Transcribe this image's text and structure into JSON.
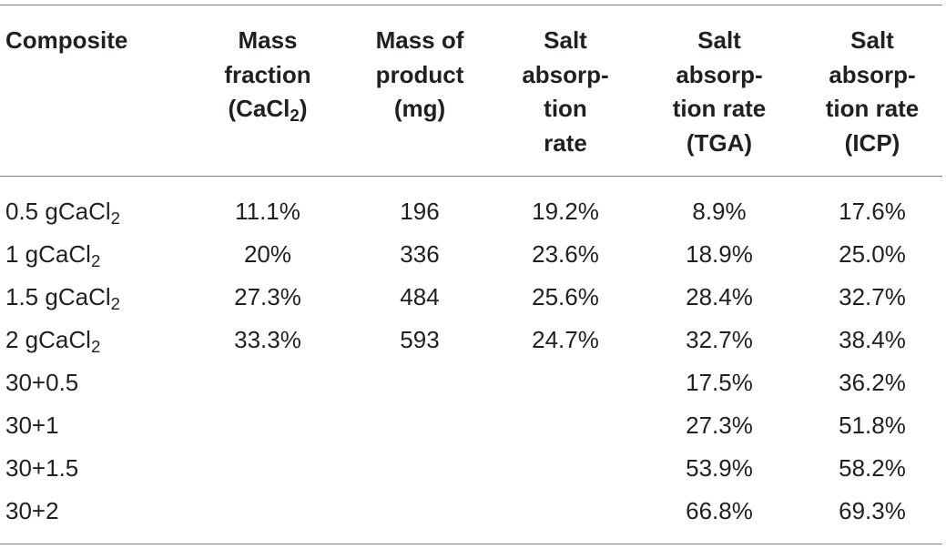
{
  "table": {
    "headers": {
      "composite": [
        "Composite"
      ],
      "mass_fraction": [
        "Mass",
        "fraction",
        "(CaCl",
        "2",
        ")"
      ],
      "mass_of_product": [
        "Mass of",
        "product",
        "(mg)"
      ],
      "salt_absorption_rate": [
        "Salt",
        "absorp-",
        "tion",
        "rate"
      ],
      "salt_absorption_rate_tga": [
        "Salt",
        "absorp-",
        "tion rate",
        "(TGA)"
      ],
      "salt_absorption_rate_icp": [
        "Salt",
        "absorp-",
        "tion rate",
        "(ICP)"
      ]
    },
    "rows": [
      {
        "composite": "0.5 gCaCl",
        "composite_sub": "2",
        "mass_fraction": "11.1%",
        "mass_of_product": "196",
        "salt_absorption_rate": "19.2%",
        "tga": "8.9%",
        "icp": "17.6%"
      },
      {
        "composite": "1 gCaCl",
        "composite_sub": "2",
        "mass_fraction": "20%",
        "mass_of_product": "336",
        "salt_absorption_rate": "23.6%",
        "tga": "18.9%",
        "icp": "25.0%"
      },
      {
        "composite": "1.5 gCaCl",
        "composite_sub": "2",
        "mass_fraction": "27.3%",
        "mass_of_product": "484",
        "salt_absorption_rate": "25.6%",
        "tga": "28.4%",
        "icp": "32.7%"
      },
      {
        "composite": "2 gCaCl",
        "composite_sub": "2",
        "mass_fraction": "33.3%",
        "mass_of_product": "593",
        "salt_absorption_rate": "24.7%",
        "tga": "32.7%",
        "icp": "38.4%"
      },
      {
        "composite": "30+0.5",
        "composite_sub": "",
        "mass_fraction": "",
        "mass_of_product": "",
        "salt_absorption_rate": "",
        "tga": "17.5%",
        "icp": "36.2%"
      },
      {
        "composite": "30+1",
        "composite_sub": "",
        "mass_fraction": "",
        "mass_of_product": "",
        "salt_absorption_rate": "",
        "tga": "27.3%",
        "icp": "51.8%"
      },
      {
        "composite": "30+1.5",
        "composite_sub": "",
        "mass_fraction": "",
        "mass_of_product": "",
        "salt_absorption_rate": "",
        "tga": "53.9%",
        "icp": "58.2%"
      },
      {
        "composite": "30+2",
        "composite_sub": "",
        "mass_fraction": "",
        "mass_of_product": "",
        "salt_absorption_rate": "",
        "tga": "66.8%",
        "icp": "69.3%"
      }
    ]
  }
}
